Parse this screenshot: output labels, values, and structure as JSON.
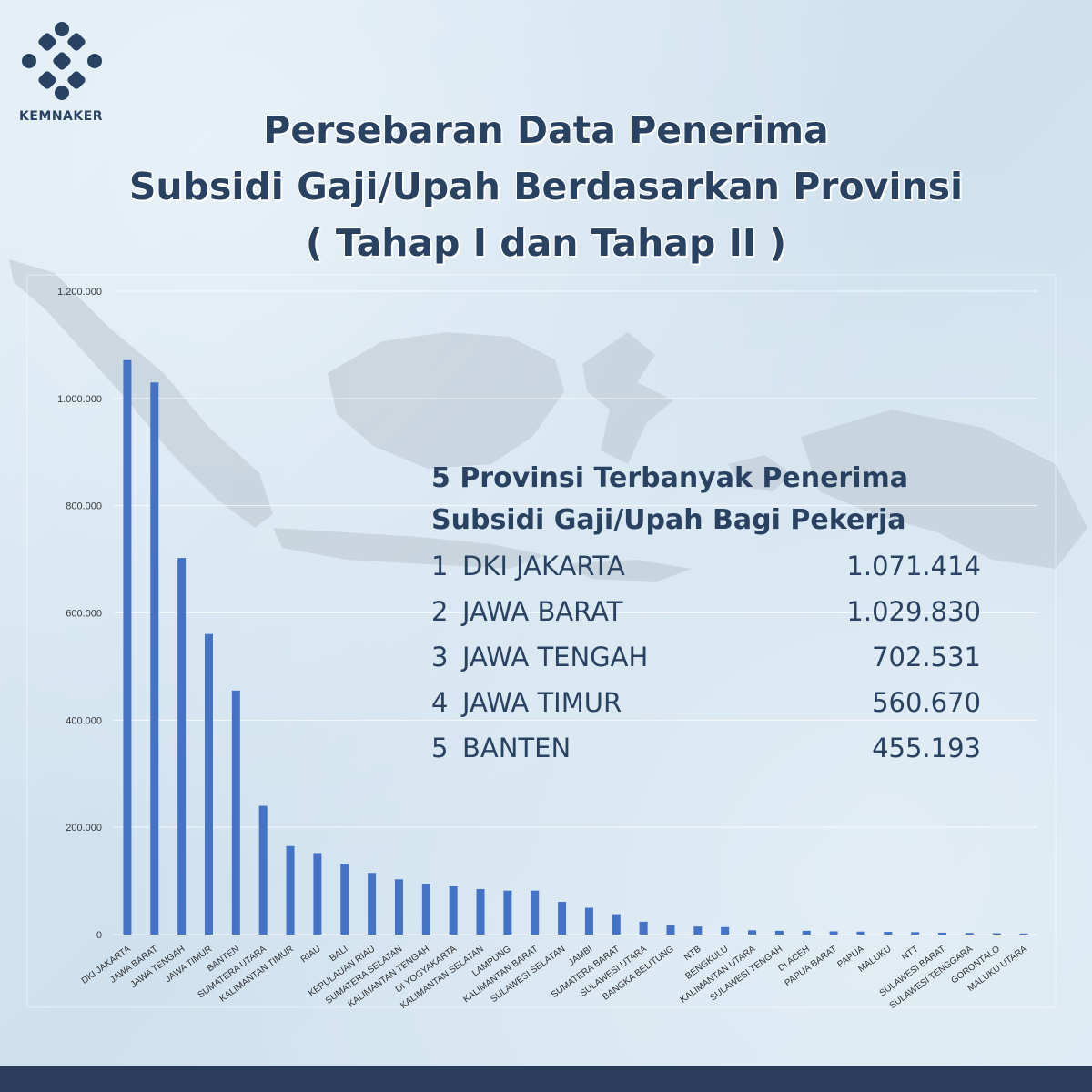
{
  "brand": {
    "name": "KEMNAKER"
  },
  "title": {
    "line1": "Persebaran Data Penerima",
    "line2": "Subsidi Gaji/Upah Berdasarkan Provinsi",
    "line3": "( Tahap I dan Tahap II )"
  },
  "callout": {
    "title_line1": "5 Provinsi Terbanyak Penerima",
    "title_line2": "Subsidi Gaji/Upah Bagi Pekerja",
    "rows": [
      {
        "rank": "1",
        "name": "DKI JAKARTA",
        "value": "1.071.414"
      },
      {
        "rank": "2",
        "name": "JAWA BARAT",
        "value": "1.029.830"
      },
      {
        "rank": "3",
        "name": "JAWA TENGAH",
        "value": "702.531"
      },
      {
        "rank": "4",
        "name": "JAWA TIMUR",
        "value": "560.670"
      },
      {
        "rank": "5",
        "name": "BANTEN",
        "value": "455.193"
      }
    ]
  },
  "colors": {
    "bar": "#4472c4",
    "title": "#2a4262",
    "background": "#d3e4f0",
    "footer": "#2a3e5c",
    "map": "#bcc6cf"
  },
  "chart_data": {
    "type": "bar",
    "categories": [
      "DKI JAKARTA",
      "JAWA BARAT",
      "JAWA TENGAH",
      "JAWA TIMUR",
      "BANTEN",
      "SUMATERA UTARA",
      "KALIMANTAN TIMUR",
      "RIAU",
      "BALI",
      "KEPULAUAN RIAU",
      "SUMATERA SELATAN",
      "KALIMANTAN TENGAH",
      "DI YOGYAKARTA",
      "KALIMANTAN SELATAN",
      "LAMPUNG",
      "KALIMANTAN BARAT",
      "SULAWESI SELATAN",
      "JAMBI",
      "SUMATERA BARAT",
      "SULAWESI UTARA",
      "BANGKA BELITUNG",
      "NTB",
      "BENGKULU",
      "KALIMANTAN UTARA",
      "SULAWESI TENGAH",
      "DI ACEH",
      "PAPUA BARAT",
      "PAPUA",
      "MALUKU",
      "NTT",
      "SULAWESI BARAT",
      "SULAWESI TENGGARA",
      "GORONTALO",
      "MALUKU UTARA"
    ],
    "values": [
      1071414,
      1029830,
      702531,
      560670,
      455193,
      240000,
      165000,
      152000,
      132000,
      115000,
      103000,
      95000,
      90000,
      85000,
      82000,
      82000,
      61000,
      50000,
      38000,
      24000,
      18000,
      15000,
      14000,
      8000,
      7000,
      7000,
      6000,
      5500,
      5000,
      4500,
      3500,
      3000,
      2500,
      2000
    ],
    "yticks": [
      "0",
      "200.000",
      "400.000",
      "600.000",
      "800.000",
      "1.000.000",
      "1.200.000"
    ],
    "ylim": [
      0,
      1200000
    ],
    "grid": true,
    "xlabel": "",
    "ylabel": ""
  }
}
